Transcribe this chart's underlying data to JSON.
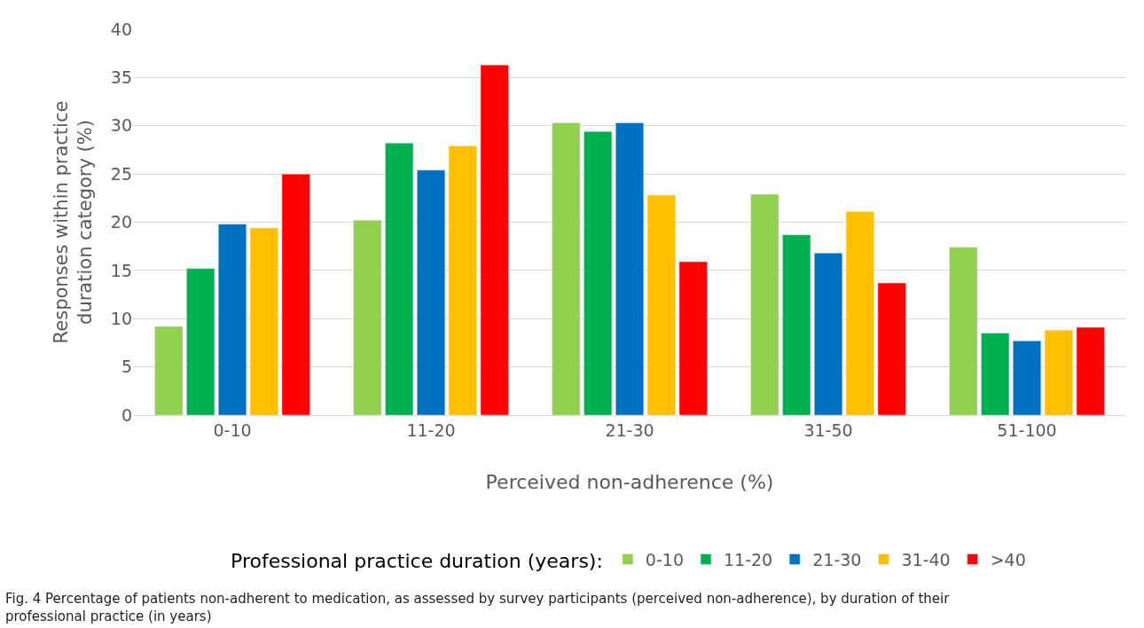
{
  "chart_data": {
    "type": "bar",
    "xlabel": "Perceived non-adherence (%)",
    "ylabel": "Responses within practice duration category (%)",
    "legend_title": "Professional practice duration (years):",
    "categories": [
      "0-10",
      "11-20",
      "21-30",
      "31-50",
      "51-100"
    ],
    "series": [
      {
        "name": "0-10",
        "color": "#92d050",
        "values": [
          9.2,
          20.2,
          30.3,
          22.9,
          17.4
        ]
      },
      {
        "name": "11-20",
        "color": "#00b050",
        "values": [
          15.2,
          28.2,
          29.4,
          18.7,
          8.5
        ]
      },
      {
        "name": "21-30",
        "color": "#0070c0",
        "values": [
          19.8,
          25.4,
          30.3,
          16.8,
          7.7
        ]
      },
      {
        "name": "31-40",
        "color": "#ffc000",
        "values": [
          19.4,
          27.9,
          22.8,
          21.1,
          8.8
        ]
      },
      {
        "name": ">40",
        "color": "#ff0000",
        "values": [
          25.0,
          36.3,
          15.9,
          13.7,
          9.1
        ]
      }
    ],
    "ylim": [
      0,
      40
    ],
    "yticks": [
      0,
      5,
      10,
      15,
      20,
      25,
      30,
      35,
      40
    ],
    "grid": "y",
    "legend": "bottom",
    "annotations": [
      "Fig. 4 Percentage of patients non-adherent to medication, as assessed by survey participants (perceived non-adherence), by duration of their professional practice (in years)"
    ]
  }
}
